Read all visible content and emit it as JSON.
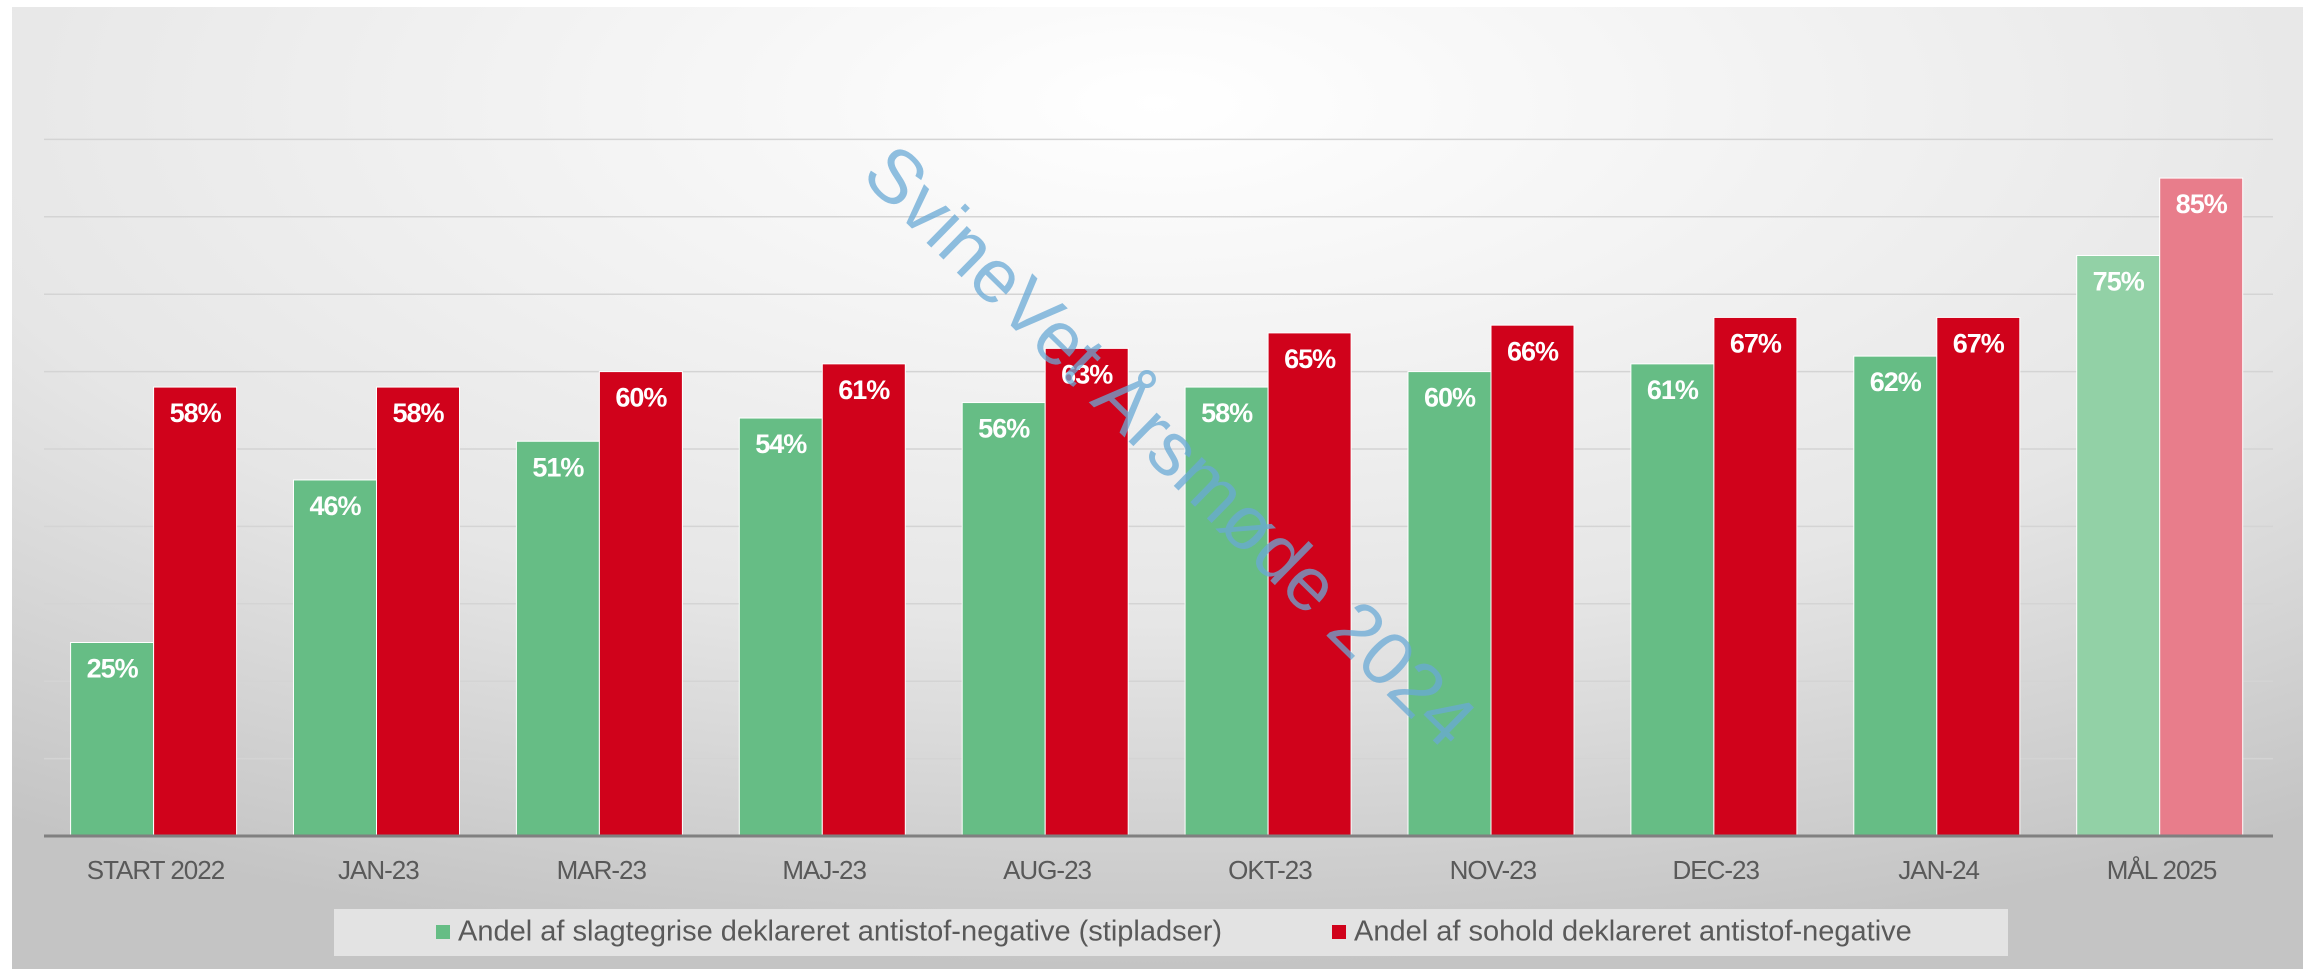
{
  "chart_data": {
    "type": "bar",
    "categories": [
      "START 2022",
      "JAN-23",
      "MAR-23",
      "MAJ-23",
      "AUG-23",
      "OKT-23",
      "NOV-23",
      "DEC-23",
      "JAN-24",
      "MÅL 2025"
    ],
    "series": [
      {
        "name": "Andel af slagtegrise deklareret antistof-negative (stipladser)",
        "color": "#66bd85",
        "colors": [
          "#66bd85",
          "#66bd85",
          "#66bd85",
          "#66bd85",
          "#66bd85",
          "#66bd85",
          "#66bd85",
          "#66bd85",
          "#66bd85",
          "#92d1a6"
        ],
        "values": [
          25,
          46,
          51,
          54,
          56,
          58,
          60,
          61,
          62,
          75
        ],
        "value_labels": [
          "25%",
          "46%",
          "51%",
          "54%",
          "56%",
          "58%",
          "60%",
          "61%",
          "62%",
          "75%"
        ]
      },
      {
        "name": "Andel af sohold deklareret antistof-negative",
        "color": "#d0021b",
        "colors": [
          "#d0021b",
          "#d0021b",
          "#d0021b",
          "#d0021b",
          "#d0021b",
          "#d0021b",
          "#d0021b",
          "#d0021b",
          "#d0021b",
          "#e87d8b"
        ],
        "values": [
          58,
          58,
          60,
          61,
          63,
          65,
          66,
          67,
          67,
          85
        ],
        "value_labels": [
          "58%",
          "58%",
          "60%",
          "61%",
          "63%",
          "65%",
          "66%",
          "67%",
          "67%",
          "85%"
        ]
      }
    ],
    "ylim": [
      0,
      100
    ],
    "yticks": [
      0,
      10,
      20,
      30,
      40,
      50,
      60,
      70,
      80,
      90
    ],
    "grid": true,
    "legend": "bottom",
    "annotation": "SvineVet Årsmøde 2024"
  }
}
